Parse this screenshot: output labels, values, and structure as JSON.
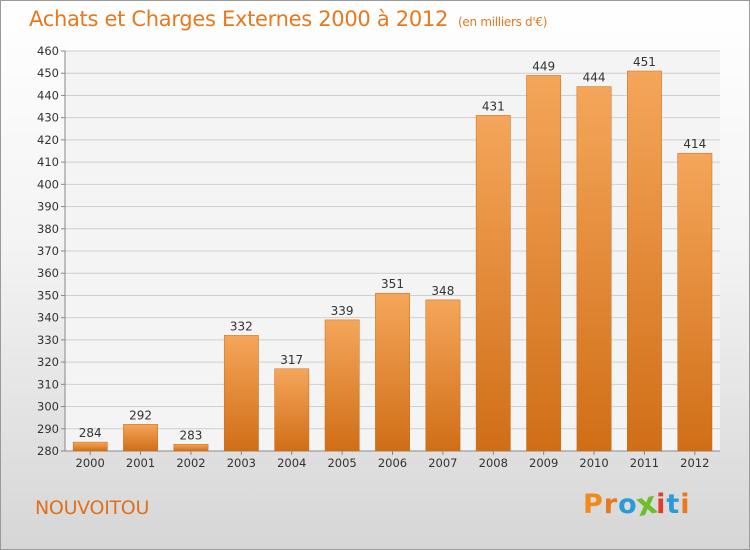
{
  "header": {
    "title": "Achats et Charges Externes 2000 à 2012",
    "unit": "(en milliers d'€)"
  },
  "footer": {
    "place": "NOUVOITOU",
    "logo": [
      "P",
      "r",
      "o",
      "x",
      "i",
      "t",
      "i"
    ]
  },
  "colors": {
    "title": "#e8781e",
    "bar_top": "#f5a65a",
    "bar_bottom": "#d06e17",
    "logo": [
      "#f08a1c",
      "#e8781e",
      "#2d9ad8",
      "#6cbf2a",
      "#e23b2a",
      "#2d9ad8",
      "#e8781e"
    ]
  },
  "chart_data": {
    "type": "bar",
    "categories": [
      "2000",
      "2001",
      "2002",
      "2003",
      "2004",
      "2005",
      "2006",
      "2007",
      "2008",
      "2009",
      "2010",
      "2011",
      "2012"
    ],
    "values": [
      284,
      292,
      283,
      332,
      317,
      339,
      351,
      348,
      431,
      449,
      444,
      451,
      414
    ],
    "value_labels": [
      "284",
      "292",
      "283",
      "332",
      "317",
      "339",
      "351",
      "348",
      "431",
      "449",
      "444",
      "451",
      "414"
    ],
    "title": "Achats et Charges Externes 2000 à 2012",
    "ylabel": "(en milliers d'€)",
    "xlabel": "",
    "ylim": [
      280,
      460
    ],
    "yticks": [
      "280",
      "290",
      "300",
      "310",
      "320",
      "330",
      "340",
      "350",
      "360",
      "370",
      "380",
      "390",
      "400",
      "410",
      "420",
      "430",
      "440",
      "450",
      "460"
    ],
    "grid": true
  }
}
